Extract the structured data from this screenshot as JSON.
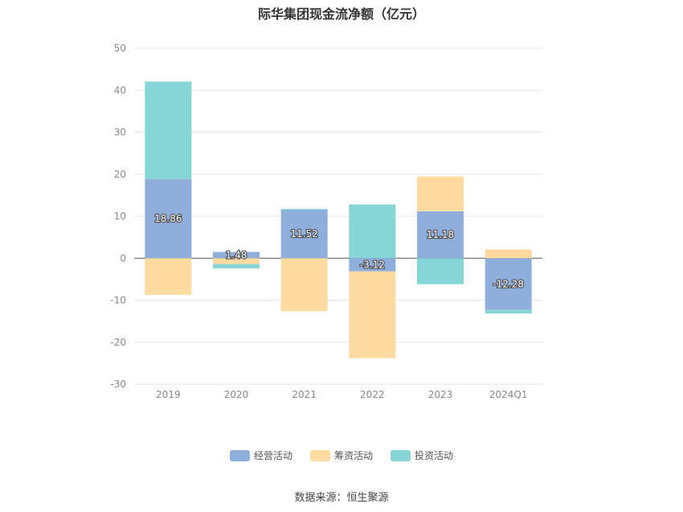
{
  "chart_data": {
    "type": "bar",
    "stacked": true,
    "title": "际华集团现金流净额（亿元）",
    "categories": [
      "2019",
      "2020",
      "2021",
      "2022",
      "2023",
      "2024Q1"
    ],
    "ylim": [
      -30,
      50
    ],
    "yticks": [
      50,
      40,
      30,
      20,
      10,
      0,
      -10,
      -20,
      -30
    ],
    "grid": true,
    "legend_position": "bottom",
    "series": [
      {
        "name": "经营活动",
        "color": "#8eaedb",
        "values": [
          18.86,
          1.48,
          11.52,
          -3.12,
          11.18,
          -12.28
        ],
        "labels": [
          "18.86",
          "1.48",
          "11.52",
          "-3.12",
          "11.18",
          "-12.28"
        ]
      },
      {
        "name": "筹资活动",
        "color": "#fddba1",
        "values": [
          -8.7,
          -1.4,
          -12.6,
          -20.7,
          8.3,
          2.1
        ]
      },
      {
        "name": "投资活动",
        "color": "#86d6d8",
        "values": [
          23.2,
          -1.0,
          0.2,
          12.8,
          -6.2,
          -0.9
        ]
      }
    ]
  },
  "legend": {
    "items": [
      "经营活动",
      "筹资活动",
      "投资活动"
    ]
  },
  "footer": {
    "source": "数据来源：恒生聚源"
  }
}
